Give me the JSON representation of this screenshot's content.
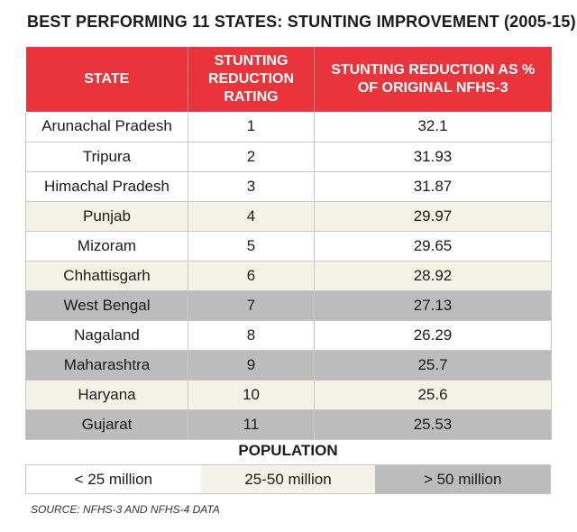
{
  "title": "BEST PERFORMING 11 STATES: STUNTING IMPROVEMENT (2005-15)",
  "table": {
    "headers": {
      "state": "STATE",
      "rating": "STUNTING REDUCTION RATING",
      "percent": "STUNTING REDUCTION AS % OF ORIGINAL NFHS-3"
    }
  },
  "colors": {
    "header_red": "#e8343a",
    "under_25_million": "#ffffff",
    "25_50_million": "#f4f2e6",
    "over_50_million": "#bcbcbc"
  },
  "population_legend": {
    "title": "POPULATION",
    "items": [
      {
        "label": "< 25 million",
        "category": "white"
      },
      {
        "label": "25-50 million",
        "category": "cream"
      },
      {
        "label": "> 50 million",
        "category": "gray"
      }
    ]
  },
  "source": "SOURCE: NFHS-3 AND NFHS-4 DATA",
  "chart_data": {
    "type": "table",
    "title": "BEST PERFORMING 11 STATES: STUNTING IMPROVEMENT (2005-15)",
    "columns": [
      "STATE",
      "STUNTING REDUCTION RATING",
      "STUNTING REDUCTION AS % OF ORIGINAL NFHS-3"
    ],
    "rows": [
      {
        "state": "Arunachal Pradesh",
        "rating": "1",
        "percent": "32.1",
        "population": "white"
      },
      {
        "state": "Tripura",
        "rating": "2",
        "percent": "31.93",
        "population": "white"
      },
      {
        "state": "Himachal Pradesh",
        "rating": "3",
        "percent": "31.87",
        "population": "white"
      },
      {
        "state": "Punjab",
        "rating": "4",
        "percent": "29.97",
        "population": "cream"
      },
      {
        "state": "Mizoram",
        "rating": "5",
        "percent": "29.65",
        "population": "white"
      },
      {
        "state": "Chhattisgarh",
        "rating": "6",
        "percent": "28.92",
        "population": "cream"
      },
      {
        "state": "West Bengal",
        "rating": "7",
        "percent": "27.13",
        "population": "gray"
      },
      {
        "state": "Nagaland",
        "rating": "8",
        "percent": "26.29",
        "population": "white"
      },
      {
        "state": "Maharashtra",
        "rating": "9",
        "percent": "25.7",
        "population": "gray"
      },
      {
        "state": "Haryana",
        "rating": "10",
        "percent": "25.6",
        "population": "cream"
      },
      {
        "state": "Gujarat",
        "rating": "11",
        "percent": "25.53",
        "population": "gray"
      }
    ]
  }
}
